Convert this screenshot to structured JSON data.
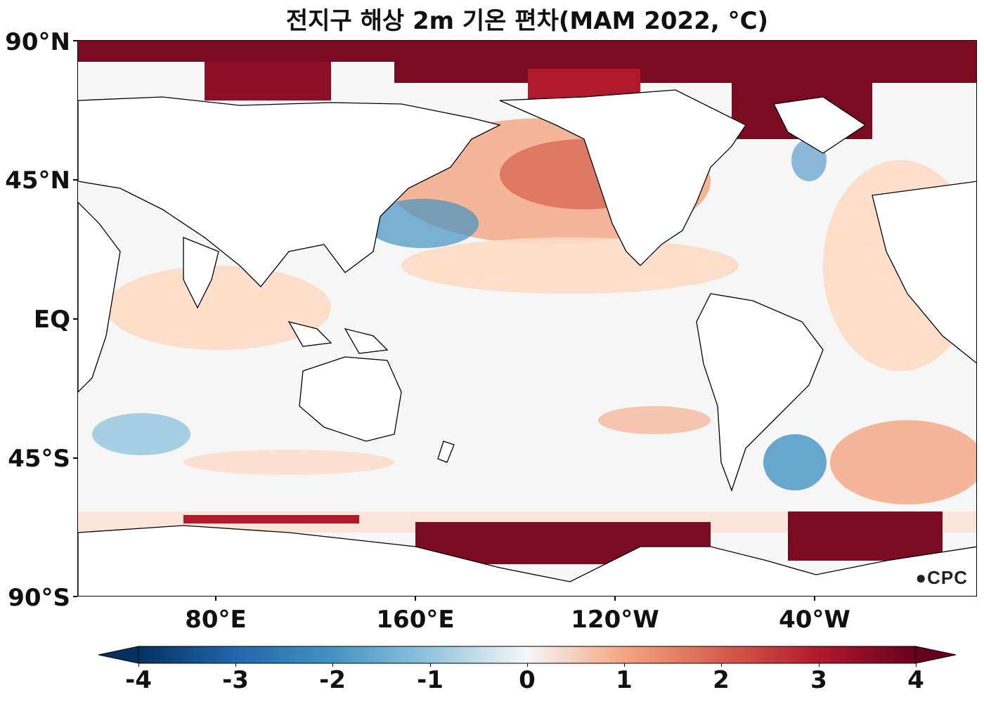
{
  "title": "전지구 해상 2m 기온 편차(MAM 2022, °C)",
  "y_axis_labels": [
    "90°N",
    "45°N",
    "EQ",
    "45°S",
    "90°S"
  ],
  "x_axis_labels": [
    "80°E",
    "160°E",
    "120°W",
    "40°W"
  ],
  "colorbar": {
    "ticks": [
      "-4",
      "-3",
      "-2",
      "-1",
      "0",
      "1",
      "2",
      "3",
      "4"
    ],
    "min": -4,
    "max": 4,
    "extend": "both",
    "colors": [
      "#053061",
      "#2166ac",
      "#4393c3",
      "#92c5de",
      "#f7f7f7",
      "#fddbc7",
      "#f4a582",
      "#d6604d",
      "#b2182b",
      "#67001f"
    ]
  },
  "logo": "CPC"
}
